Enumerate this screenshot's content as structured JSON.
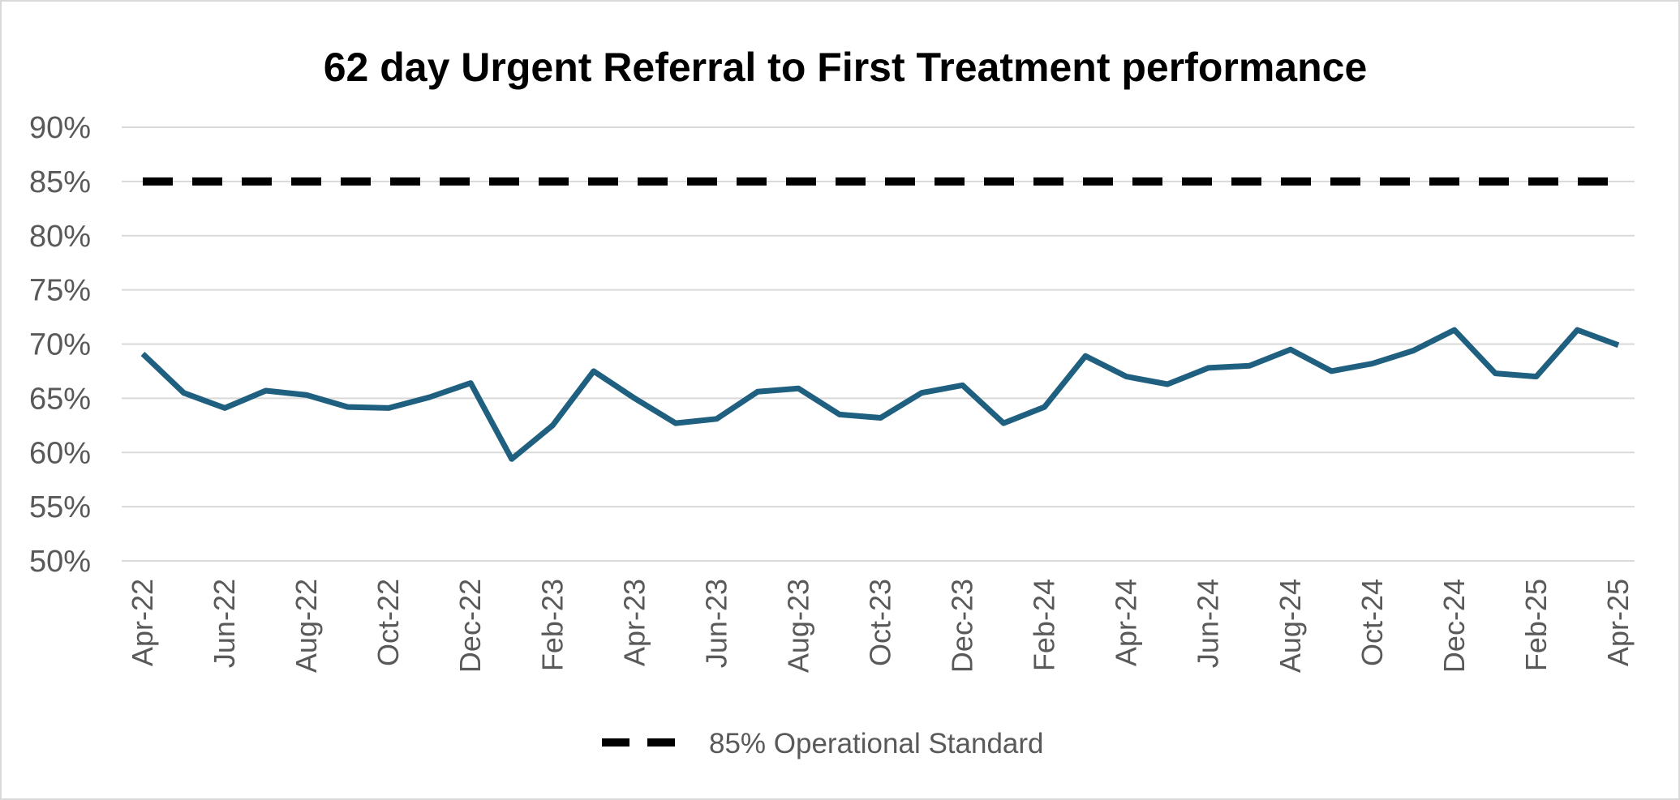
{
  "chart_data": {
    "type": "line",
    "title": "62 day Urgent Referral to First Treatment performance",
    "xlabel": "",
    "ylabel": "",
    "ylim": [
      0.5,
      0.9
    ],
    "y_ticks": [
      "90%",
      "85%",
      "80%",
      "75%",
      "70%",
      "65%",
      "60%",
      "55%",
      "50%"
    ],
    "y_tick_values": [
      0.9,
      0.85,
      0.8,
      0.75,
      0.7,
      0.65,
      0.6,
      0.55,
      0.5
    ],
    "grid": true,
    "legend_position": "bottom",
    "x": [
      "Apr-22",
      "May-22",
      "Jun-22",
      "Jul-22",
      "Aug-22",
      "Sep-22",
      "Oct-22",
      "Nov-22",
      "Dec-22",
      "Jan-23",
      "Feb-23",
      "Mar-23",
      "Apr-23",
      "May-23",
      "Jun-23",
      "Jul-23",
      "Aug-23",
      "Sep-23",
      "Oct-23",
      "Nov-23",
      "Dec-23",
      "Jan-24",
      "Feb-24",
      "Mar-24",
      "Apr-24",
      "May-24",
      "Jun-24",
      "Jul-24",
      "Aug-24",
      "Sep-24",
      "Oct-24",
      "Nov-24",
      "Dec-24",
      "Jan-25",
      "Feb-25",
      "Mar-25",
      "Apr-25"
    ],
    "x_tick_labels": [
      "Apr-22",
      "Jun-22",
      "Aug-22",
      "Oct-22",
      "Dec-22",
      "Feb-23",
      "Apr-23",
      "Jun-23",
      "Aug-23",
      "Oct-23",
      "Dec-23",
      "Feb-24",
      "Apr-24",
      "Jun-24",
      "Aug-24",
      "Oct-24",
      "Dec-24",
      "Feb-25",
      "Apr-25"
    ],
    "series": [
      {
        "color": "#1f5f7f",
        "style": "solid",
        "values": [
          0.691,
          0.655,
          0.641,
          0.657,
          0.653,
          0.642,
          0.641,
          0.651,
          0.664,
          0.594,
          0.625,
          0.675,
          0.65,
          0.627,
          0.631,
          0.656,
          0.659,
          0.635,
          0.632,
          0.655,
          0.662,
          0.627,
          0.642,
          0.689,
          0.67,
          0.663,
          0.678,
          0.68,
          0.695,
          0.675,
          0.682,
          0.694,
          0.713,
          0.673,
          0.67,
          0.713,
          0.699
        ]
      },
      {
        "name": "85% Operational Standard",
        "color": "#000000",
        "style": "dashed",
        "values": [
          0.85,
          0.85,
          0.85,
          0.85,
          0.85,
          0.85,
          0.85,
          0.85,
          0.85,
          0.85,
          0.85,
          0.85,
          0.85,
          0.85,
          0.85,
          0.85,
          0.85,
          0.85,
          0.85,
          0.85,
          0.85,
          0.85,
          0.85,
          0.85,
          0.85,
          0.85,
          0.85,
          0.85,
          0.85,
          0.85,
          0.85,
          0.85,
          0.85,
          0.85,
          0.85,
          0.85,
          0.85
        ]
      }
    ],
    "legend": [
      {
        "label": "85% Operational Standard",
        "style": "dashed",
        "color": "#000000"
      }
    ],
    "colors": {
      "grid": "#d9d9d9",
      "axis_text": "#595959",
      "performance_line": "#1f5f7f"
    }
  }
}
